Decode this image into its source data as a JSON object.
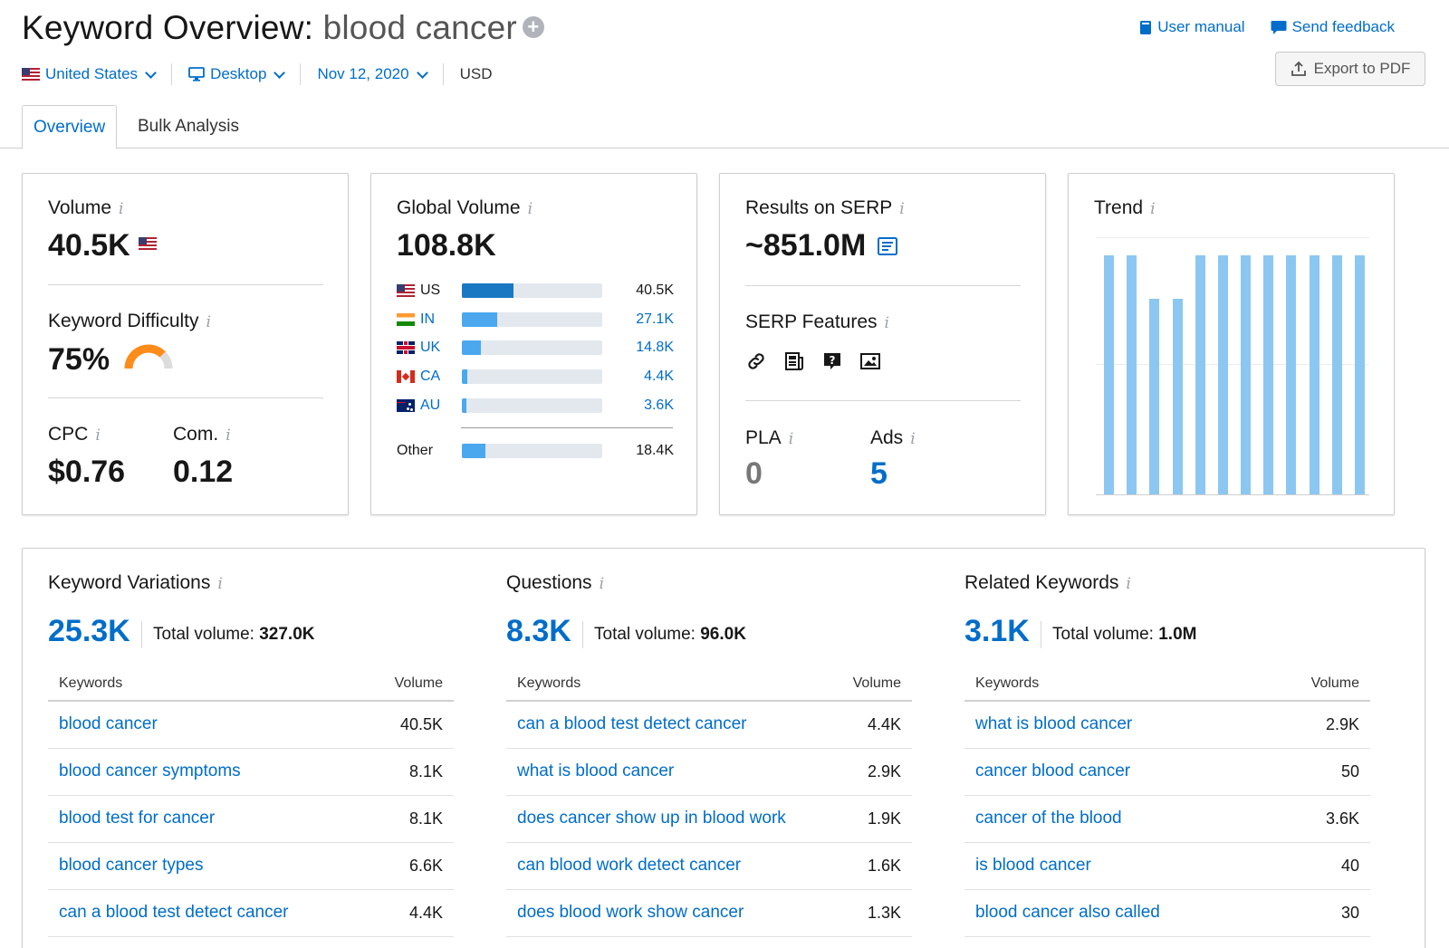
{
  "header": {
    "title_prefix": "Keyword Overview:",
    "keyword": "blood cancer",
    "user_manual": "User manual",
    "send_feedback": "Send feedback",
    "export_pdf": "Export to PDF"
  },
  "filters": {
    "country": "United States",
    "device": "Desktop",
    "date": "Nov 12, 2020",
    "currency": "USD"
  },
  "tabs": [
    "Overview",
    "Bulk Analysis"
  ],
  "volume_card": {
    "volume_label": "Volume",
    "volume_value": "40.5K",
    "kd_label": "Keyword Difficulty",
    "kd_value": "75%",
    "kd_percent": 75,
    "cpc_label": "CPC",
    "cpc_value": "$0.76",
    "com_label": "Com.",
    "com_value": "0.12"
  },
  "global_volume": {
    "label": "Global Volume",
    "value": "108.8K",
    "rows": [
      {
        "country": "US",
        "value": "40.5K",
        "fraction": 0.37
      },
      {
        "country": "IN",
        "value": "27.1K",
        "fraction": 0.25
      },
      {
        "country": "UK",
        "value": "14.8K",
        "fraction": 0.136
      },
      {
        "country": "CA",
        "value": "4.4K",
        "fraction": 0.04
      },
      {
        "country": "AU",
        "value": "3.6K",
        "fraction": 0.033
      }
    ],
    "other": {
      "label": "Other",
      "value": "18.4K",
      "fraction": 0.169
    }
  },
  "serp_card": {
    "results_label": "Results on SERP",
    "results_value": "~851.0M",
    "features_label": "SERP Features",
    "feature_icons": [
      "link-icon",
      "news-icon",
      "question-icon",
      "image-icon"
    ],
    "pla_label": "PLA",
    "pla_value": "0",
    "ads_label": "Ads",
    "ads_value": "5"
  },
  "trend": {
    "label": "Trend",
    "values": [
      1.0,
      1.0,
      0.82,
      0.82,
      1.0,
      1.0,
      1.0,
      1.0,
      1.0,
      1.0,
      1.0,
      1.0
    ],
    "bar_color": "#8cc7f2"
  },
  "lists": [
    {
      "title": "Keyword Variations",
      "count": "25.3K",
      "total_label": "Total volume:",
      "total_value": "327.0K",
      "col_keywords": "Keywords",
      "col_volume": "Volume",
      "rows": [
        {
          "kw": "blood cancer",
          "vol": "40.5K"
        },
        {
          "kw": "blood cancer symptoms",
          "vol": "8.1K"
        },
        {
          "kw": "blood test for cancer",
          "vol": "8.1K"
        },
        {
          "kw": "blood cancer types",
          "vol": "6.6K"
        },
        {
          "kw": "can a blood test detect cancer",
          "vol": "4.4K"
        }
      ]
    },
    {
      "title": "Questions",
      "count": "8.3K",
      "total_label": "Total volume:",
      "total_value": "96.0K",
      "col_keywords": "Keywords",
      "col_volume": "Volume",
      "rows": [
        {
          "kw": "can a blood test detect cancer",
          "vol": "4.4K"
        },
        {
          "kw": "what is blood cancer",
          "vol": "2.9K"
        },
        {
          "kw": "does cancer show up in blood work",
          "vol": "1.9K"
        },
        {
          "kw": "can blood work detect cancer",
          "vol": "1.6K"
        },
        {
          "kw": "does blood work show cancer",
          "vol": "1.3K"
        }
      ]
    },
    {
      "title": "Related Keywords",
      "count": "3.1K",
      "total_label": "Total volume:",
      "total_value": "1.0M",
      "col_keywords": "Keywords",
      "col_volume": "Volume",
      "rows": [
        {
          "kw": "what is blood cancer",
          "vol": "2.9K"
        },
        {
          "kw": "cancer blood cancer",
          "vol": "50"
        },
        {
          "kw": "cancer of the blood",
          "vol": "3.6K"
        },
        {
          "kw": "is blood cancer",
          "vol": "40"
        },
        {
          "kw": "blood cancer also called",
          "vol": "30"
        }
      ]
    }
  ]
}
